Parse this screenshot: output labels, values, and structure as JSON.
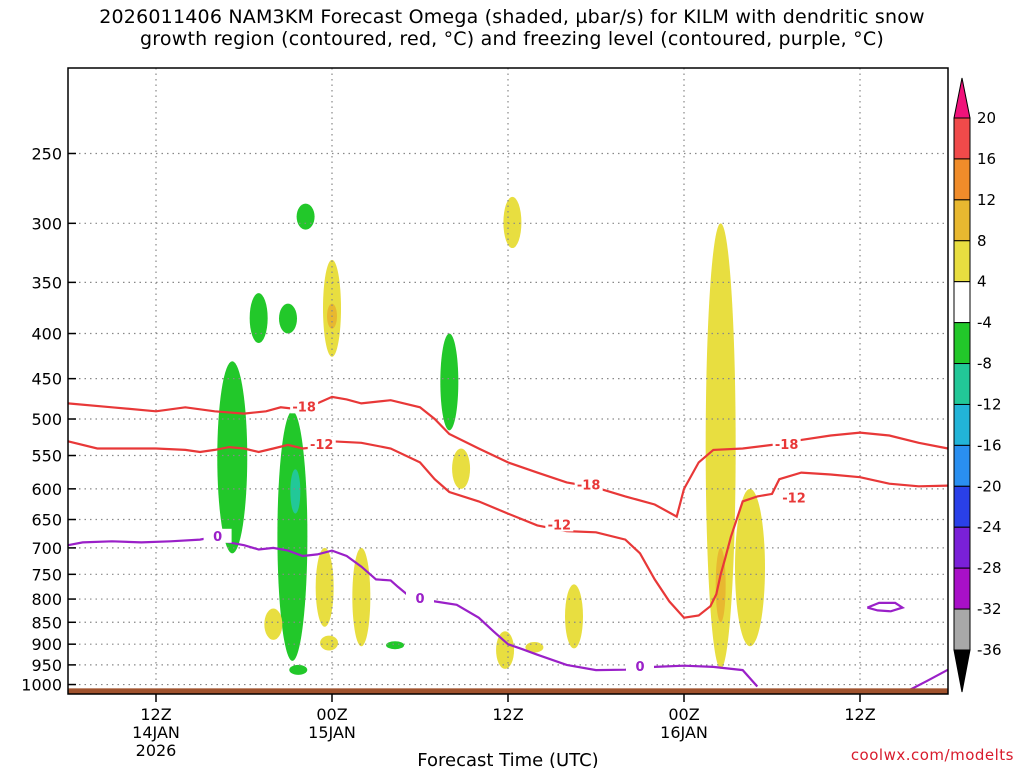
{
  "title": {
    "line1": "2026011406 NAM3KM Forecast Omega (shaded, µbar/s) for KILM with dendritic snow",
    "line2": "growth region (contoured, red, °C) and freezing level (contoured, purple, °C)"
  },
  "credit": "coolwx.com/modelts",
  "chart_data": {
    "type": "time-height cross section",
    "xlabel": "Forecast Time (UTC)",
    "x_ticks": [
      {
        "hour": 6,
        "lines": [
          "12Z",
          "14JAN",
          "2026"
        ]
      },
      {
        "hour": 18,
        "lines": [
          "00Z",
          "15JAN"
        ]
      },
      {
        "hour": 30,
        "lines": [
          "12Z"
        ]
      },
      {
        "hour": 42,
        "lines": [
          "00Z",
          "16JAN"
        ]
      },
      {
        "hour": 54,
        "lines": [
          "12Z"
        ]
      }
    ],
    "xlim_hours": [
      0,
      60
    ],
    "y_axis": "pressure (hPa)",
    "y_scale": "log",
    "ylim": [
      1025,
      200
    ],
    "y_ticks": [
      250,
      300,
      350,
      400,
      450,
      500,
      550,
      600,
      650,
      700,
      750,
      800,
      850,
      900,
      950,
      1000
    ],
    "grid": true,
    "colorbar": {
      "placement": "right",
      "levels": [
        "20",
        "16",
        "12",
        "8",
        "4",
        "-4",
        "-8",
        "-12",
        "-16",
        "-20",
        "-24",
        "-28",
        "-32",
        "-36"
      ],
      "colors": [
        "#f0127a",
        "#f04a4a",
        "#f08c2a",
        "#e8b830",
        "#e8de40",
        "#ffffff",
        "#22c82a",
        "#22c898",
        "#22b4d8",
        "#2a8ff0",
        "#2a40e8",
        "#7a20d8",
        "#a810c8",
        "#a8a8a8",
        "#000000"
      ]
    },
    "omega_regions": [
      {
        "sign": "negative",
        "magnitude": "4-8",
        "hour": 11.2,
        "p_top": 430,
        "p_bottom": 710
      },
      {
        "sign": "negative",
        "magnitude": "4-8",
        "hour": 13.0,
        "p_top": 360,
        "p_bottom": 410
      },
      {
        "sign": "negative",
        "magnitude": "4-8",
        "hour": 15.0,
        "p_top": 370,
        "p_bottom": 400
      },
      {
        "sign": "negative",
        "magnitude": "4-8",
        "hour": 15.3,
        "p_top": 490,
        "p_bottom": 940
      },
      {
        "sign": "negative",
        "magnitude": "8-12",
        "hour": 15.5,
        "p_top": 570,
        "p_bottom": 640
      },
      {
        "sign": "negative",
        "magnitude": "4-8",
        "hour": 15.7,
        "p_top": 950,
        "p_bottom": 975
      },
      {
        "sign": "negative",
        "magnitude": "4-8",
        "hour": 16.2,
        "p_top": 285,
        "p_bottom": 305
      },
      {
        "sign": "negative",
        "magnitude": "4-8",
        "hour": 22.3,
        "p_top": 895,
        "p_bottom": 910
      },
      {
        "sign": "negative",
        "magnitude": "4-8",
        "hour": 26.0,
        "p_top": 400,
        "p_bottom": 515
      },
      {
        "sign": "positive",
        "magnitude": "4-8",
        "hour": 18.0,
        "p_top": 330,
        "p_bottom": 425
      },
      {
        "sign": "positive",
        "magnitude": "8-12",
        "hour": 18.0,
        "p_top": 370,
        "p_bottom": 395
      },
      {
        "sign": "positive",
        "magnitude": "4-8",
        "hour": 17.5,
        "p_top": 700,
        "p_bottom": 860
      },
      {
        "sign": "positive",
        "magnitude": "4-8",
        "hour": 20.0,
        "p_top": 700,
        "p_bottom": 905
      },
      {
        "sign": "positive",
        "magnitude": "4-8",
        "hour": 17.8,
        "p_top": 880,
        "p_bottom": 915
      },
      {
        "sign": "positive",
        "magnitude": "4-8",
        "hour": 14.0,
        "p_top": 820,
        "p_bottom": 890
      },
      {
        "sign": "positive",
        "magnitude": "4-8",
        "hour": 26.8,
        "p_top": 540,
        "p_bottom": 600
      },
      {
        "sign": "positive",
        "magnitude": "4-8",
        "hour": 30.3,
        "p_top": 280,
        "p_bottom": 320
      },
      {
        "sign": "positive",
        "magnitude": "4-8",
        "hour": 29.8,
        "p_top": 870,
        "p_bottom": 960
      },
      {
        "sign": "positive",
        "magnitude": "4-8",
        "hour": 31.8,
        "p_top": 895,
        "p_bottom": 920
      },
      {
        "sign": "positive",
        "magnitude": "4-8",
        "hour": 34.5,
        "p_top": 770,
        "p_bottom": 910
      },
      {
        "sign": "positive",
        "magnitude": "4-8",
        "hour": 44.5,
        "p_top": 300,
        "p_bottom": 960
      },
      {
        "sign": "positive",
        "magnitude": "8-12",
        "hour": 44.5,
        "p_top": 700,
        "p_bottom": 850
      },
      {
        "sign": "positive",
        "magnitude": "4-8",
        "hour": 46.5,
        "p_top": 600,
        "p_bottom": 905
      }
    ],
    "contours": [
      {
        "label": "-18",
        "color": "#e83838",
        "label_hour": 16.5,
        "points": [
          [
            0,
            480
          ],
          [
            3,
            485
          ],
          [
            6,
            490
          ],
          [
            8,
            485
          ],
          [
            10,
            490
          ],
          [
            12,
            493
          ],
          [
            13.5,
            490
          ],
          [
            14.5,
            485
          ],
          [
            16,
            488
          ],
          [
            17,
            480
          ],
          [
            18,
            472
          ],
          [
            19,
            475
          ],
          [
            20,
            480
          ],
          [
            22,
            476
          ],
          [
            24,
            485
          ],
          [
            25,
            500
          ],
          [
            26,
            520
          ],
          [
            28,
            540
          ],
          [
            30,
            560
          ],
          [
            32,
            575
          ],
          [
            34,
            590
          ],
          [
            36,
            598
          ],
          [
            38,
            612
          ],
          [
            40,
            625
          ],
          [
            41.5,
            645
          ],
          [
            42,
            600
          ],
          [
            43,
            560
          ],
          [
            44,
            542
          ],
          [
            46,
            540
          ],
          [
            48,
            535
          ],
          [
            50,
            528
          ],
          [
            52,
            522
          ],
          [
            54,
            518
          ],
          [
            56,
            522
          ],
          [
            58,
            532
          ],
          [
            60,
            540
          ]
        ]
      },
      {
        "label": "-12",
        "color": "#e83838",
        "label_hour": 17.5,
        "points": [
          [
            0,
            530
          ],
          [
            2,
            540
          ],
          [
            4,
            540
          ],
          [
            6,
            540
          ],
          [
            8,
            542
          ],
          [
            9,
            545
          ],
          [
            10,
            542
          ],
          [
            11,
            538
          ],
          [
            12,
            540
          ],
          [
            13,
            545
          ],
          [
            14,
            540
          ],
          [
            15,
            535
          ],
          [
            16,
            540
          ],
          [
            17,
            538
          ],
          [
            18,
            530
          ],
          [
            20,
            532
          ],
          [
            22,
            540
          ],
          [
            24,
            560
          ],
          [
            25,
            585
          ],
          [
            26,
            605
          ],
          [
            28,
            620
          ],
          [
            30,
            640
          ],
          [
            32,
            660
          ],
          [
            34,
            670
          ],
          [
            36,
            672
          ],
          [
            38,
            685
          ],
          [
            39,
            710
          ],
          [
            40,
            760
          ],
          [
            41,
            805
          ],
          [
            42,
            840
          ],
          [
            43,
            835
          ],
          [
            43.8,
            815
          ],
          [
            44.2,
            790
          ],
          [
            44.5,
            750
          ],
          [
            44.8,
            720
          ],
          [
            45.2,
            680
          ],
          [
            46,
            620
          ],
          [
            47,
            612
          ],
          [
            48,
            608
          ],
          [
            48.5,
            585
          ],
          [
            50,
            575
          ],
          [
            52,
            578
          ],
          [
            54,
            582
          ],
          [
            56,
            592
          ],
          [
            58,
            596
          ],
          [
            60,
            595
          ]
        ]
      },
      {
        "label": "0",
        "color": "#9a20c8",
        "label_hour": 10,
        "points": [
          [
            0,
            695
          ],
          [
            1,
            690
          ],
          [
            3,
            688
          ],
          [
            5,
            690
          ],
          [
            7,
            688
          ],
          [
            9,
            685
          ],
          [
            10,
            680
          ],
          [
            11,
            690
          ],
          [
            12,
            695
          ],
          [
            13,
            703
          ],
          [
            14,
            700
          ],
          [
            15,
            705
          ],
          [
            16,
            715
          ],
          [
            17,
            712
          ],
          [
            18,
            705
          ],
          [
            19,
            715
          ],
          [
            20,
            735
          ],
          [
            21,
            760
          ],
          [
            22,
            762
          ],
          [
            22.5,
            775
          ],
          [
            23.5,
            800
          ],
          [
            25,
            805
          ],
          [
            26.5,
            812
          ],
          [
            28,
            840
          ],
          [
            29,
            870
          ],
          [
            30,
            900
          ],
          [
            31,
            912
          ],
          [
            32,
            925
          ],
          [
            34,
            950
          ],
          [
            36,
            963
          ],
          [
            38,
            962
          ],
          [
            40,
            955
          ],
          [
            42,
            952
          ],
          [
            44,
            955
          ],
          [
            46,
            963
          ],
          [
            47,
            1005
          ]
        ]
      },
      {
        "label": "0",
        "color": "#9a20c8",
        "label_hour": null,
        "points": [
          [
            54.5,
            818
          ],
          [
            55.3,
            808
          ],
          [
            56.4,
            808
          ],
          [
            56.9,
            818
          ],
          [
            56.1,
            826
          ],
          [
            55.2,
            824
          ],
          [
            54.5,
            818
          ]
        ]
      },
      {
        "label": "0",
        "color": "#9a20c8",
        "label_hour": null,
        "points": [
          [
            57.2,
            1018
          ],
          [
            58.6,
            990
          ],
          [
            60,
            962
          ]
        ]
      }
    ],
    "contour_labels": [
      {
        "text": "-18",
        "color": "#e83838",
        "hour": 16.1,
        "p": 485
      },
      {
        "text": "-12",
        "color": "#e83838",
        "hour": 17.3,
        "p": 535
      },
      {
        "text": "-18",
        "color": "#e83838",
        "hour": 35.5,
        "p": 595
      },
      {
        "text": "-12",
        "color": "#e83838",
        "hour": 33.5,
        "p": 660
      },
      {
        "text": "-18",
        "color": "#e83838",
        "hour": 49.0,
        "p": 535
      },
      {
        "text": "-12",
        "color": "#e83838",
        "hour": 49.5,
        "p": 615
      },
      {
        "text": "0",
        "color": "#9a20c8",
        "hour": 10.2,
        "p": 680
      },
      {
        "text": "0",
        "color": "#9a20c8",
        "hour": 24.0,
        "p": 800
      },
      {
        "text": "0",
        "color": "#9a20c8",
        "hour": 39.0,
        "p": 955
      }
    ],
    "terrain": {
      "color": "#a0522d",
      "top_p": 1010
    }
  }
}
